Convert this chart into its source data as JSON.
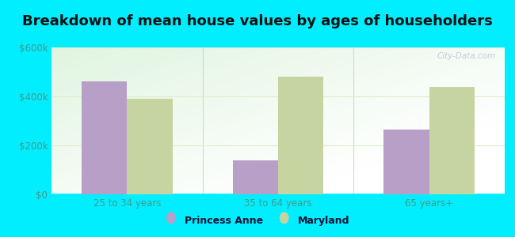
{
  "title": "Breakdown of mean house values by ages of householders",
  "categories": [
    "25 to 34 years",
    "35 to 64 years",
    "65 years+"
  ],
  "princess_anne_values": [
    460000,
    140000,
    265000
  ],
  "maryland_values": [
    390000,
    480000,
    440000
  ],
  "ylim": [
    0,
    600000
  ],
  "yticks": [
    0,
    200000,
    400000,
    600000
  ],
  "ytick_labels": [
    "$0",
    "$200k",
    "$400k",
    "$600k"
  ],
  "princess_anne_color": "#b89fc8",
  "maryland_color": "#c5d4a0",
  "background_color": "#00eeff",
  "bar_width": 0.3,
  "legend_labels": [
    "Princess Anne",
    "Maryland"
  ],
  "title_fontsize": 13,
  "title_color": "#111111",
  "axis_label_color": "#449988",
  "tick_label_color": "#449988",
  "watermark": "City-Data.com",
  "grid_color": "#ddeecc",
  "separator_color": "#aaddaa"
}
